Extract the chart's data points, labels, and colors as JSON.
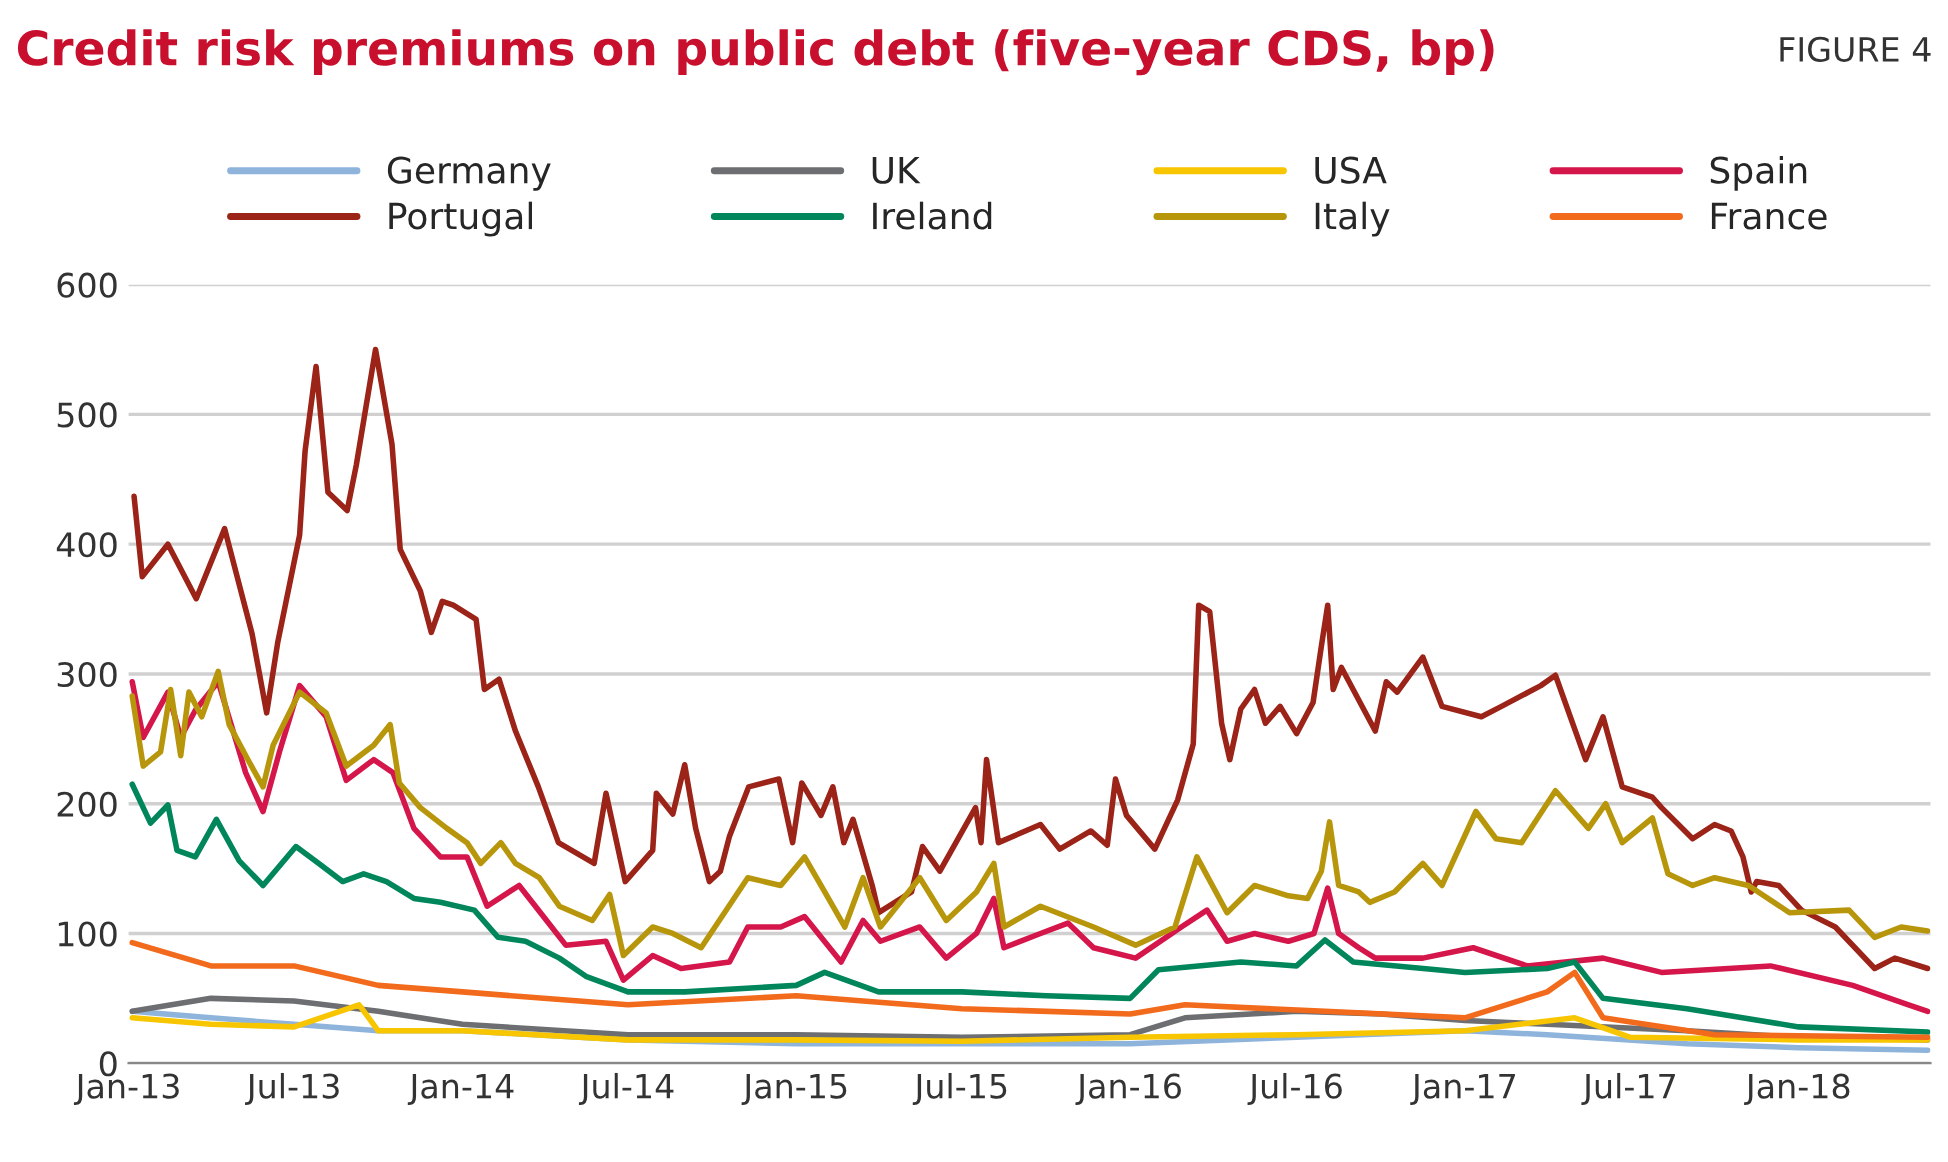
{
  "chart_data": {
    "type": "line",
    "title": "Credit risk premiums on public debt (five-year CDS, bp)",
    "annotations": [
      "FIGURE 4"
    ],
    "xlim": [
      "2013-01-01",
      "2018-05-25"
    ],
    "ylim": [
      0,
      600
    ],
    "yticks": [
      0,
      100,
      200,
      300,
      400,
      500,
      600
    ],
    "xticks": [
      {
        "value": "2013-01-01",
        "label": "Jan-13"
      },
      {
        "value": "2013-07-01",
        "label": "Jul-13"
      },
      {
        "value": "2014-01-01",
        "label": "Jan-14"
      },
      {
        "value": "2014-07-01",
        "label": "Jul-14"
      },
      {
        "value": "2015-01-01",
        "label": "Jan-15"
      },
      {
        "value": "2015-07-01",
        "label": "Jul-15"
      },
      {
        "value": "2016-01-01",
        "label": "Jan-16"
      },
      {
        "value": "2016-07-01",
        "label": "Jul-16"
      },
      {
        "value": "2017-01-01",
        "label": "Jan-17"
      },
      {
        "value": "2017-07-01",
        "label": "Jul-17"
      },
      {
        "value": "2018-01-01",
        "label": "Jan-18"
      }
    ],
    "grid": "y",
    "legend": "top",
    "marker": "none",
    "line_style": "solid",
    "series": [
      {
        "name": "Germany",
        "color": "#8fb4dc",
        "x": [
          "2013-01-05",
          "2013-04-01",
          "2013-07-01",
          "2013-10-01",
          "2014-01-01",
          "2014-07-01",
          "2015-01-01",
          "2015-07-01",
          "2016-01-01",
          "2016-07-01",
          "2017-01-01",
          "2017-04-01",
          "2017-09-01",
          "2018-01-01",
          "2018-05-22"
        ],
        "values": [
          40,
          35,
          30,
          25,
          25,
          18,
          15,
          15,
          15,
          20,
          25,
          22,
          15,
          12,
          10
        ]
      },
      {
        "name": "UK",
        "color": "#6d6e71",
        "x": [
          "2013-01-05",
          "2013-04-01",
          "2013-07-01",
          "2013-10-01",
          "2014-01-01",
          "2014-07-01",
          "2015-01-01",
          "2015-07-01",
          "2016-01-01",
          "2016-03-01",
          "2016-07-01",
          "2016-10-01",
          "2017-01-01",
          "2017-04-01",
          "2017-09-01",
          "2018-01-01",
          "2018-05-22"
        ],
        "values": [
          40,
          50,
          48,
          40,
          30,
          22,
          22,
          20,
          22,
          35,
          40,
          38,
          33,
          30,
          25,
          20,
          18
        ]
      },
      {
        "name": "USA",
        "color": "#f7c600",
        "x": [
          "2013-01-05",
          "2013-04-01",
          "2013-07-01",
          "2013-09-10",
          "2013-10-01",
          "2014-01-01",
          "2014-07-01",
          "2015-01-01",
          "2015-07-01",
          "2016-01-01",
          "2016-07-01",
          "2017-01-01",
          "2017-05-01",
          "2017-07-01",
          "2018-01-01",
          "2018-05-22"
        ],
        "values": [
          35,
          30,
          28,
          45,
          25,
          25,
          18,
          18,
          17,
          20,
          22,
          25,
          35,
          20,
          18,
          18
        ]
      },
      {
        "name": "Spain",
        "color": "#d4164b",
        "x": [
          "2013-01-05",
          "2013-01-17",
          "2013-02-13",
          "2013-02-27",
          "2013-03-15",
          "2013-04-09",
          "2013-05-09",
          "2013-05-28",
          "2013-06-15",
          "2013-07-07",
          "2013-08-05",
          "2013-08-27",
          "2013-09-26",
          "2013-10-17",
          "2013-11-09",
          "2013-12-08",
          "2014-01-06",
          "2014-01-28",
          "2014-03-04",
          "2014-04-03",
          "2014-04-24",
          "2014-06-07",
          "2014-06-26",
          "2014-07-28",
          "2014-08-28",
          "2014-10-20",
          "2014-11-09",
          "2014-12-15",
          "2015-01-10",
          "2015-02-19",
          "2015-03-15",
          "2015-04-03",
          "2015-05-16",
          "2015-06-14",
          "2015-07-17",
          "2015-08-05",
          "2015-08-16",
          "2015-09-25",
          "2015-10-25",
          "2015-11-22",
          "2016-01-07",
          "2016-02-26",
          "2016-03-25",
          "2016-04-16",
          "2016-05-16",
          "2016-06-22",
          "2016-07-20",
          "2016-08-04",
          "2016-08-16",
          "2016-09-07",
          "2016-09-25",
          "2016-11-16",
          "2017-01-10",
          "2017-03-10",
          "2017-06-01",
          "2017-08-04",
          "2017-12-01",
          "2018-03-01",
          "2018-05-01",
          "2018-05-22"
        ],
        "values": [
          294,
          251,
          286,
          251,
          272,
          294,
          224,
          194,
          240,
          291,
          267,
          218,
          234,
          224,
          181,
          159,
          159,
          121,
          137,
          110,
          91,
          94,
          64,
          83,
          73,
          78,
          105,
          105,
          113,
          78,
          110,
          94,
          105,
          81,
          100,
          127,
          89,
          100,
          108,
          89,
          81,
          105,
          118,
          94,
          100,
          94,
          100,
          135,
          100,
          89,
          81,
          81,
          89,
          75,
          81,
          70,
          75,
          60,
          45,
          40
        ]
      },
      {
        "name": "Portugal",
        "color": "#9b2318",
        "x": [
          "2013-01-07",
          "2013-01-16",
          "2013-02-13",
          "2013-03-16",
          "2013-04-16",
          "2013-05-16",
          "2013-06-01",
          "2013-06-13",
          "2013-07-07",
          "2013-07-13",
          "2013-07-25",
          "2013-08-07",
          "2013-08-28",
          "2013-09-07",
          "2013-09-28",
          "2013-10-16",
          "2013-10-25",
          "2013-11-16",
          "2013-11-28",
          "2013-12-10",
          "2013-12-22",
          "2014-01-16",
          "2014-01-25",
          "2014-02-10",
          "2014-02-28",
          "2014-03-25",
          "2014-04-16",
          "2014-05-25",
          "2014-06-07",
          "2014-06-28",
          "2014-07-28",
          "2014-08-01",
          "2014-08-19",
          "2014-09-01",
          "2014-09-13",
          "2014-09-28",
          "2014-10-10",
          "2014-10-20",
          "2014-11-10",
          "2014-12-13",
          "2014-12-28",
          "2015-01-07",
          "2015-01-28",
          "2015-02-10",
          "2015-02-22",
          "2015-03-04",
          "2015-03-25",
          "2015-04-01",
          "2015-05-07",
          "2015-05-19",
          "2015-06-07",
          "2015-07-16",
          "2015-07-22",
          "2015-07-28",
          "2015-08-10",
          "2015-09-25",
          "2015-10-16",
          "2015-11-19",
          "2015-12-07",
          "2015-12-16",
          "2015-12-28",
          "2016-01-28",
          "2016-02-22",
          "2016-03-10",
          "2016-03-16",
          "2016-03-28",
          "2016-04-10",
          "2016-04-19",
          "2016-05-01",
          "2016-05-16",
          "2016-05-28",
          "2016-06-13",
          "2016-07-01",
          "2016-07-19",
          "2016-07-28",
          "2016-08-04",
          "2016-08-10",
          "2016-08-19",
          "2016-09-25",
          "2016-10-07",
          "2016-10-19",
          "2016-11-16",
          "2016-12-07",
          "2017-01-19",
          "2017-02-10",
          "2017-03-25",
          "2017-04-10",
          "2017-05-13",
          "2017-06-01",
          "2017-06-22",
          "2017-07-25",
          "2017-08-04",
          "2017-09-07",
          "2017-10-01",
          "2017-10-19",
          "2017-11-01",
          "2017-11-10",
          "2017-11-16",
          "2017-12-10",
          "2018-01-04",
          "2018-02-10",
          "2018-03-25",
          "2018-04-16",
          "2018-05-22"
        ],
        "values": [
          437,
          375,
          400,
          358,
          412,
          331,
          270,
          324,
          407,
          472,
          537,
          440,
          426,
          461,
          550,
          477,
          396,
          364,
          332,
          356,
          353,
          342,
          288,
          296,
          256,
          213,
          170,
          154,
          208,
          140,
          164,
          208,
          192,
          230,
          181,
          140,
          148,
          175,
          213,
          219,
          170,
          216,
          191,
          213,
          170,
          188,
          137,
          116,
          132,
          167,
          148,
          197,
          170,
          234,
          170,
          184,
          165,
          179,
          168,
          219,
          191,
          165,
          203,
          246,
          353,
          348,
          262,
          234,
          273,
          288,
          262,
          275,
          254,
          278,
          321,
          353,
          288,
          305,
          256,
          294,
          286,
          313,
          275,
          267,
          275,
          291,
          299,
          234,
          267,
          213,
          205,
          197,
          173,
          184,
          179,
          159,
          132,
          140,
          137,
          118,
          105,
          73,
          81,
          73
        ]
      },
      {
        "name": "Ireland",
        "color": "#00865a",
        "x": [
          "2013-01-05",
          "2013-01-25",
          "2013-02-13",
          "2013-02-23",
          "2013-03-15",
          "2013-04-07",
          "2013-05-02",
          "2013-05-28",
          "2013-07-03",
          "2013-07-28",
          "2013-08-23",
          "2013-09-15",
          "2013-10-10",
          "2013-11-09",
          "2013-12-08",
          "2014-01-14",
          "2014-02-09",
          "2014-03-11",
          "2014-04-17",
          "2014-05-16",
          "2014-07-01",
          "2014-09-01",
          "2015-01-01",
          "2015-02-01",
          "2015-04-01",
          "2015-07-01",
          "2015-10-01",
          "2016-01-01",
          "2016-02-01",
          "2016-05-01",
          "2016-07-01",
          "2016-08-01",
          "2016-09-01",
          "2016-12-01",
          "2017-01-01",
          "2017-04-01",
          "2017-05-01",
          "2017-06-01",
          "2017-09-01",
          "2018-01-01",
          "2018-05-22"
        ],
        "values": [
          215,
          185,
          199,
          164,
          159,
          188,
          156,
          137,
          167,
          154,
          140,
          146,
          140,
          127,
          124,
          118,
          97,
          94,
          81,
          67,
          55,
          55,
          60,
          70,
          55,
          55,
          52,
          50,
          72,
          78,
          75,
          95,
          78,
          72,
          70,
          73,
          78,
          50,
          42,
          28,
          24
        ]
      },
      {
        "name": "Italy",
        "color": "#b8960c",
        "x": [
          "2013-01-05",
          "2013-01-17",
          "2013-02-05",
          "2013-02-16",
          "2013-02-27",
          "2013-03-08",
          "2013-03-22",
          "2013-04-09",
          "2013-04-21",
          "2013-05-13",
          "2013-05-28",
          "2013-06-08",
          "2013-07-07",
          "2013-08-05",
          "2013-08-27",
          "2013-09-26",
          "2013-10-14",
          "2013-10-24",
          "2013-11-16",
          "2013-12-15",
          "2014-01-06",
          "2014-01-21",
          "2014-02-12",
          "2014-02-28",
          "2014-03-26",
          "2014-04-17",
          "2014-05-23",
          "2014-06-11",
          "2014-06-26",
          "2014-07-28",
          "2014-08-19",
          "2014-09-19",
          "2014-11-09",
          "2014-12-15",
          "2015-01-10",
          "2015-01-28",
          "2015-02-23",
          "2015-03-15",
          "2015-04-03",
          "2015-05-16",
          "2015-06-14",
          "2015-07-17",
          "2015-08-05",
          "2015-08-16",
          "2015-09-25",
          "2015-11-22",
          "2016-01-07",
          "2016-02-19",
          "2016-03-14",
          "2016-04-16",
          "2016-05-16",
          "2016-06-22",
          "2016-07-13",
          "2016-07-28",
          "2016-08-06",
          "2016-08-16",
          "2016-09-07",
          "2016-09-19",
          "2016-10-16",
          "2016-11-16",
          "2016-12-07",
          "2017-01-13",
          "2017-02-04",
          "2017-03-04",
          "2017-04-10",
          "2017-05-16",
          "2017-06-04",
          "2017-06-22",
          "2017-07-25",
          "2017-08-11",
          "2017-09-07",
          "2017-10-01",
          "2017-11-07",
          "2017-12-22",
          "2018-02-25",
          "2018-03-25",
          "2018-04-23",
          "2018-05-22"
        ],
        "values": [
          283,
          229,
          240,
          288,
          237,
          286,
          267,
          302,
          261,
          232,
          213,
          245,
          286,
          270,
          229,
          245,
          261,
          216,
          197,
          181,
          170,
          154,
          170,
          154,
          143,
          121,
          110,
          130,
          83,
          105,
          100,
          89,
          143,
          137,
          159,
          137,
          105,
          143,
          105,
          143,
          110,
          132,
          154,
          105,
          121,
          105,
          91,
          105,
          159,
          116,
          137,
          129,
          127,
          148,
          186,
          137,
          132,
          124,
          132,
          154,
          137,
          194,
          173,
          170,
          210,
          181,
          200,
          170,
          189,
          146,
          137,
          143,
          137,
          116,
          118,
          97,
          105,
          102
        ]
      },
      {
        "name": "France",
        "color": "#f26a1b",
        "x": [
          "2013-01-05",
          "2013-04-01",
          "2013-07-01",
          "2013-10-01",
          "2014-01-01",
          "2014-07-01",
          "2015-01-01",
          "2015-07-01",
          "2016-01-01",
          "2016-03-01",
          "2016-08-01",
          "2017-01-01",
          "2017-04-01",
          "2017-05-01",
          "2017-06-01",
          "2017-10-01",
          "2018-05-22"
        ],
        "values": [
          93,
          75,
          75,
          60,
          55,
          45,
          52,
          42,
          38,
          45,
          40,
          35,
          55,
          70,
          35,
          22,
          20
        ]
      }
    ]
  }
}
